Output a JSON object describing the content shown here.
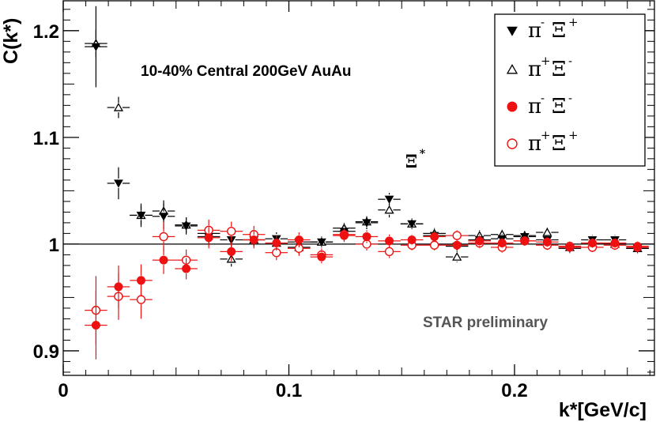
{
  "chart_data": {
    "type": "scatter",
    "title": "",
    "xlabel": "k*[GeV/c]",
    "ylabel": "C(k*)",
    "xlim": [
      0,
      0.262
    ],
    "ylim": [
      0.877,
      1.228
    ],
    "x_ticks": [
      0,
      0.1,
      0.2
    ],
    "x_tick_labels": [
      "0",
      "0.1",
      "0.2"
    ],
    "y_ticks": [
      0.9,
      1.0,
      1.1,
      1.2
    ],
    "y_tick_labels": [
      "0.9",
      "1",
      "1.1",
      "1.2"
    ],
    "reference_line": 1.0,
    "annotations": {
      "centrality": "10-40% Central 200GeV AuAu",
      "preliminary": "STAR preliminary",
      "xi_star": {
        "base": "Ξ",
        "sup": "*",
        "x": 0.153,
        "y": 1.077
      }
    },
    "legend_position": "top-right",
    "series": [
      {
        "name": "π- Ξ+",
        "legend": {
          "base1": "π",
          "sup1": "-",
          "base2": "Ξ",
          "sup2": "+"
        },
        "marker": "filled-triangle-down",
        "color": "#000000",
        "x": [
          0.0145,
          0.0245,
          0.0345,
          0.0445,
          0.0545,
          0.0645,
          0.0745,
          0.0845,
          0.0945,
          0.1045,
          0.1145,
          0.1245,
          0.1345,
          0.1445,
          0.1545,
          0.1645,
          0.1745,
          0.1845,
          0.1945,
          0.2045,
          0.2145,
          0.2245,
          0.2345,
          0.2445,
          0.2545
        ],
        "y": [
          1.185,
          1.057,
          1.027,
          1.026,
          1.017,
          1.007,
          1.004,
          1.004,
          1.005,
          1.002,
          1.002,
          1.012,
          1.02,
          1.042,
          1.019,
          1.008,
          0.998,
          1.004,
          1.005,
          1.007,
          1.004,
          0.996,
          1.004,
          1.004,
          0.996
        ],
        "yerr": [
          0.038,
          0.015,
          0.011,
          0.012,
          0.008,
          0.008,
          0.007,
          0.006,
          0.006,
          0.006,
          0.005,
          0.005,
          0.006,
          0.006,
          0.005,
          0.005,
          0.005,
          0.005,
          0.004,
          0.004,
          0.004,
          0.004,
          0.004,
          0.004,
          0.004
        ]
      },
      {
        "name": "π+ Ξ-",
        "legend": {
          "base1": "π",
          "sup1": "+",
          "base2": "Ξ",
          "sup2": "-"
        },
        "marker": "open-triangle-up",
        "color": "#000000",
        "x": [
          0.0145,
          0.0245,
          0.0345,
          0.0445,
          0.0545,
          0.0645,
          0.0745,
          0.0845,
          0.0945,
          0.1045,
          0.1145,
          0.1245,
          0.1345,
          0.1445,
          0.1545,
          0.1645,
          0.1745,
          0.1845,
          0.1945,
          0.2045,
          0.2145,
          0.2245,
          0.2345,
          0.2445,
          0.2545
        ],
        "y": [
          1.188,
          1.128,
          1.027,
          1.031,
          1.018,
          1.01,
          0.986,
          1.004,
          1.001,
          0.997,
          1.002,
          1.015,
          1.021,
          1.032,
          1.019,
          1.01,
          0.988,
          1.008,
          1.009,
          1.008,
          1.011,
          0.997,
          1.001,
          1.0,
          0.996
        ],
        "yerr": [
          0.013,
          0.01,
          0.009,
          0.01,
          0.007,
          0.007,
          0.007,
          0.006,
          0.006,
          0.006,
          0.005,
          0.005,
          0.005,
          0.007,
          0.005,
          0.005,
          0.005,
          0.005,
          0.004,
          0.004,
          0.004,
          0.004,
          0.004,
          0.004,
          0.004
        ]
      },
      {
        "name": "π- Ξ-",
        "legend": {
          "base1": "π",
          "sup1": "-",
          "base2": "Ξ",
          "sup2": "-"
        },
        "marker": "filled-circle",
        "color": "#ee1111",
        "x": [
          0.0145,
          0.0245,
          0.0345,
          0.0445,
          0.0545,
          0.0645,
          0.0745,
          0.0845,
          0.0945,
          0.1045,
          0.1145,
          0.1245,
          0.1345,
          0.1445,
          0.1545,
          0.1645,
          0.1745,
          0.1845,
          0.1945,
          0.2045,
          0.2145,
          0.2245,
          0.2345,
          0.2445,
          0.2545
        ],
        "y": [
          0.924,
          0.96,
          0.966,
          0.985,
          0.977,
          1.006,
          0.993,
          1.004,
          1.001,
          1.004,
          0.988,
          1.008,
          1.007,
          1.003,
          1.004,
          1.007,
          0.999,
          1.003,
          1.001,
          1.003,
          1.002,
          0.997,
          1.001,
          1.001,
          0.998
        ],
        "yerr": [
          0.032,
          0.02,
          0.015,
          0.013,
          0.01,
          0.01,
          0.009,
          0.008,
          0.007,
          0.007,
          0.006,
          0.006,
          0.006,
          0.006,
          0.005,
          0.005,
          0.005,
          0.005,
          0.005,
          0.004,
          0.004,
          0.004,
          0.004,
          0.004,
          0.004
        ]
      },
      {
        "name": "π+ Ξ+",
        "legend": {
          "base1": "π",
          "sup1": "+",
          "base2": "Ξ",
          "sup2": "+"
        },
        "marker": "open-circle",
        "color": "#ee1111",
        "x": [
          0.0145,
          0.0245,
          0.0345,
          0.0445,
          0.0545,
          0.0645,
          0.0745,
          0.0845,
          0.0945,
          0.1045,
          0.1145,
          0.1245,
          0.1345,
          0.1445,
          0.1545,
          0.1645,
          0.1745,
          0.1845,
          0.1945,
          0.2045,
          0.2145,
          0.2245,
          0.2345,
          0.2445,
          0.2545
        ],
        "y": [
          0.938,
          0.951,
          0.948,
          1.007,
          0.985,
          1.013,
          1.012,
          1.009,
          0.992,
          0.996,
          0.99,
          1.009,
          1.0,
          0.993,
          0.999,
          0.999,
          1.008,
          1.001,
          0.997,
          1.003,
          0.999,
          0.998,
          0.997,
          0.999,
          0.997
        ],
        "yerr": [
          0.032,
          0.022,
          0.018,
          0.014,
          0.01,
          0.01,
          0.009,
          0.008,
          0.007,
          0.007,
          0.006,
          0.006,
          0.006,
          0.006,
          0.005,
          0.005,
          0.005,
          0.005,
          0.005,
          0.004,
          0.004,
          0.004,
          0.004,
          0.004,
          0.004
        ]
      }
    ]
  }
}
